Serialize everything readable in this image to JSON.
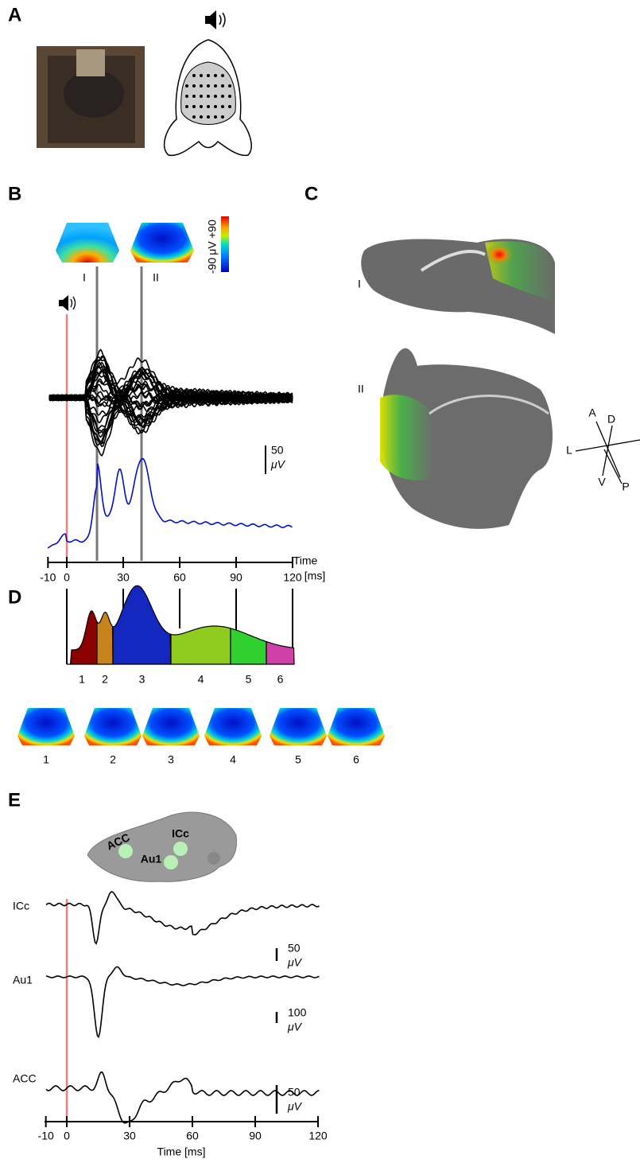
{
  "panel_a": {
    "label": "A"
  },
  "panel_b": {
    "label": "B",
    "maps": [
      "I",
      "II"
    ],
    "colorbar": {
      "max": "+90",
      "unit": "μV",
      "min": "-90"
    },
    "scale_bar": {
      "value": "50",
      "unit": "μV"
    },
    "xticks": [
      -10,
      0,
      30,
      60,
      90,
      120
    ],
    "xlabel": [
      "Time",
      "[ms]"
    ]
  },
  "panel_c": {
    "label": "C",
    "sections": [
      "I",
      "II"
    ],
    "directions": [
      "A",
      "D",
      "L",
      "V",
      "P"
    ]
  },
  "panel_d": {
    "label": "D",
    "segments": [
      "1",
      "2",
      "3",
      "4",
      "5",
      "6"
    ],
    "maps": [
      "1",
      "2",
      "3",
      "4",
      "5",
      "6"
    ]
  },
  "panel_e": {
    "label": "E",
    "regions": [
      "ICc",
      "ACC",
      "Au1"
    ],
    "traces": [
      {
        "name": "ICc",
        "scale": "50",
        "unit": "μV"
      },
      {
        "name": "Au1",
        "scale": "100",
        "unit": "μV"
      },
      {
        "name": "ACC",
        "scale": "50",
        "unit": "μV"
      }
    ],
    "xticks": [
      -10,
      0,
      30,
      60,
      90,
      120
    ],
    "xlabel": "Time [ms]"
  }
}
